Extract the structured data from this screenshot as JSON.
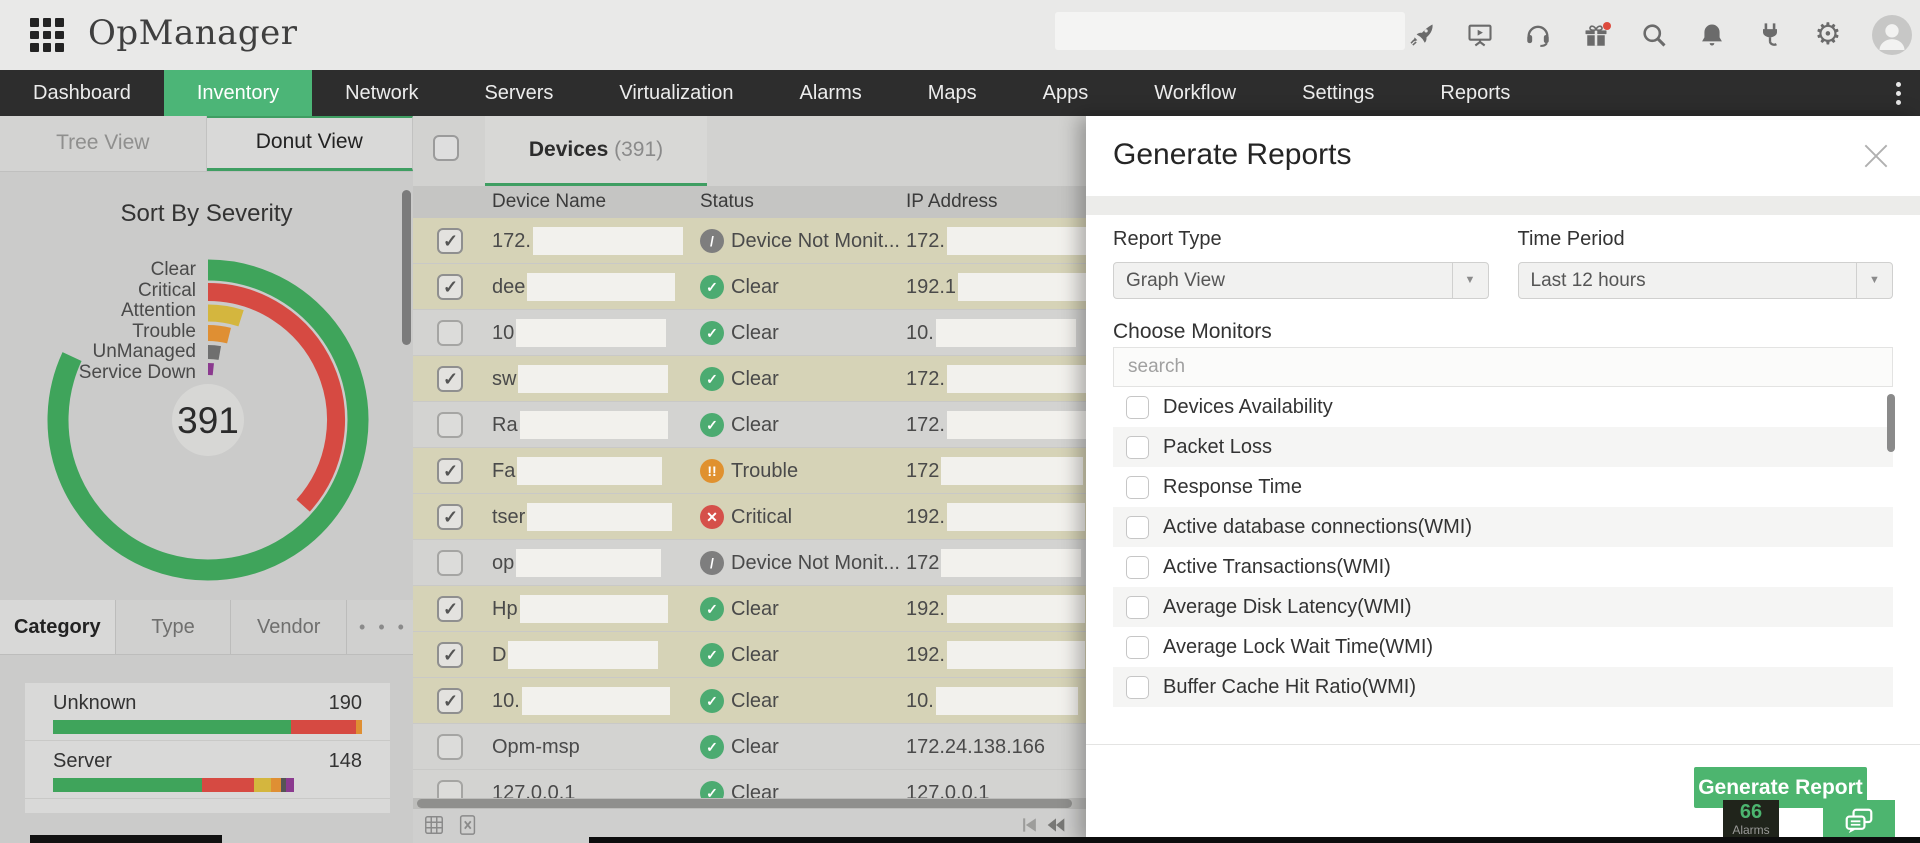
{
  "header": {
    "logo": "OpManager"
  },
  "nav": {
    "items": [
      {
        "label": "Dashboard",
        "active": false
      },
      {
        "label": "Inventory",
        "active": true
      },
      {
        "label": "Network",
        "active": false
      },
      {
        "label": "Servers",
        "active": false
      },
      {
        "label": "Virtualization",
        "active": false
      },
      {
        "label": "Alarms",
        "active": false
      },
      {
        "label": "Maps",
        "active": false
      },
      {
        "label": "Apps",
        "active": false
      },
      {
        "label": "Workflow",
        "active": false
      },
      {
        "label": "Settings",
        "active": false
      },
      {
        "label": "Reports",
        "active": false
      }
    ]
  },
  "chart_data": {
    "type": "donut",
    "title": "Sort By Severity",
    "total": "391",
    "legend_position": "left",
    "segments": [
      {
        "label": "Clear",
        "color": "#3fa45b",
        "sweep_deg": 295
      },
      {
        "label": "Critical",
        "color": "#d64a42",
        "sweep_deg": 132
      },
      {
        "label": "Attention",
        "color": "#d4b63e",
        "sweep_deg": 18
      },
      {
        "label": "Trouble",
        "color": "#df8f33",
        "sweep_deg": 14
      },
      {
        "label": "UnManaged",
        "color": "#6f6f6f",
        "sweep_deg": 10
      },
      {
        "label": "Service Down",
        "color": "#8b3a8f",
        "sweep_deg": 6
      }
    ]
  },
  "sidebar": {
    "view_tabs": [
      {
        "label": "Tree View",
        "active": false
      },
      {
        "label": "Donut View",
        "active": true
      }
    ],
    "category_tabs": [
      {
        "label": "Category",
        "active": true
      },
      {
        "label": "Type",
        "active": false
      },
      {
        "label": "Vendor",
        "active": false
      }
    ],
    "more_tabs_icon": "ellipsis-icon",
    "category_bars": [
      {
        "label": "Unknown",
        "value": "190",
        "scale_pct": 100,
        "segments": [
          {
            "color": "#3fa45b",
            "pct": 77
          },
          {
            "color": "#d64a42",
            "pct": 21
          },
          {
            "color": "#df8f33",
            "pct": 2
          }
        ]
      },
      {
        "label": "Server",
        "value": "148",
        "scale_pct": 78,
        "segments": [
          {
            "color": "#3fa45b",
            "pct": 62
          },
          {
            "color": "#d64a42",
            "pct": 21.5
          },
          {
            "color": "#d4b63e",
            "pct": 7
          },
          {
            "color": "#df8f33",
            "pct": 4
          },
          {
            "color": "#555555",
            "pct": 2
          },
          {
            "color": "#8b3a8f",
            "pct": 3.5
          }
        ]
      }
    ]
  },
  "devices": {
    "tab_label": "Devices",
    "tab_count": "(391)",
    "columns": {
      "name": "Device Name",
      "status": "Status",
      "ip": "IP Address"
    },
    "rows": [
      {
        "checked": true,
        "name": "172.",
        "name_redact_w": 150,
        "status_label": "Device Not Monit...",
        "status_color": "#7e7e7e",
        "status_glyph": "/",
        "ip": "172.",
        "ip_redact_w": 140
      },
      {
        "checked": true,
        "name": "dee",
        "name_redact_w": 148,
        "status_label": "Clear",
        "status_color": "#4cab71",
        "status_glyph": "✓",
        "ip": "192.1",
        "ip_redact_w": 138
      },
      {
        "checked": false,
        "name": "10",
        "name_redact_w": 150,
        "status_label": "Clear",
        "status_color": "#4cab71",
        "status_glyph": "✓",
        "ip": "10.",
        "ip_redact_w": 140
      },
      {
        "checked": true,
        "name": "sw",
        "name_redact_w": 150,
        "status_label": "Clear",
        "status_color": "#4cab71",
        "status_glyph": "✓",
        "ip": "172.",
        "ip_redact_w": 140
      },
      {
        "checked": false,
        "name": "Ra",
        "name_redact_w": 148,
        "status_label": "Clear",
        "status_color": "#4cab71",
        "status_glyph": "✓",
        "ip": "172.",
        "ip_redact_w": 140
      },
      {
        "checked": true,
        "name": "Fa",
        "name_redact_w": 145,
        "status_label": "Trouble",
        "status_color": "#e0912f",
        "status_glyph": "!!",
        "ip": "172",
        "ip_redact_w": 142
      },
      {
        "checked": true,
        "name": "tser",
        "name_redact_w": 145,
        "status_label": "Critical",
        "status_color": "#d5504a",
        "status_glyph": "✕",
        "ip": "192.",
        "ip_redact_w": 138
      },
      {
        "checked": false,
        "name": "op",
        "name_redact_w": 145,
        "status_label": "Device Not Monit...",
        "status_color": "#7e7e7e",
        "status_glyph": "/",
        "ip": "172",
        "ip_redact_w": 140
      },
      {
        "checked": true,
        "name": "Hp",
        "name_redact_w": 148,
        "status_label": "Clear",
        "status_color": "#4cab71",
        "status_glyph": "✓",
        "ip": "192.",
        "ip_redact_w": 138
      },
      {
        "checked": true,
        "name": "D",
        "name_redact_w": 150,
        "status_label": "Clear",
        "status_color": "#4cab71",
        "status_glyph": "✓",
        "ip": "192.",
        "ip_redact_w": 138
      },
      {
        "checked": true,
        "name": "10.",
        "name_redact_w": 148,
        "status_label": "Clear",
        "status_color": "#4cab71",
        "status_glyph": "✓",
        "ip": "10.",
        "ip_redact_w": 142
      },
      {
        "checked": false,
        "name": "Opm-msp",
        "name_redact_w": 0,
        "status_label": "Clear",
        "status_color": "#4cab71",
        "status_glyph": "✓",
        "ip": "172.24.138.166",
        "ip_redact_w": 0
      },
      {
        "checked": false,
        "name": "127.0.0.1",
        "name_redact_w": 0,
        "status_label": "Clear",
        "status_color": "#4cab71",
        "status_glyph": "✓",
        "ip": "127.0.0.1",
        "ip_redact_w": 0
      }
    ]
  },
  "report_panel": {
    "title": "Generate Reports",
    "report_type_label": "Report Type",
    "report_type_value": "Graph View",
    "time_period_label": "Time Period",
    "time_period_value": "Last 12 hours",
    "choose_monitors_label": "Choose Monitors",
    "search_placeholder": "search",
    "monitors": [
      "Devices Availability",
      "Packet Loss",
      "Response Time",
      "Active database connections(WMI)",
      "Active Transactions(WMI)",
      "Average Disk Latency(WMI)",
      "Average Lock Wait Time(WMI)",
      "Buffer Cache Hit Ratio(WMI)"
    ],
    "generate_button_label": "Generate Report"
  },
  "alarms_widget": {
    "count": "66",
    "label": "Alarms"
  }
}
